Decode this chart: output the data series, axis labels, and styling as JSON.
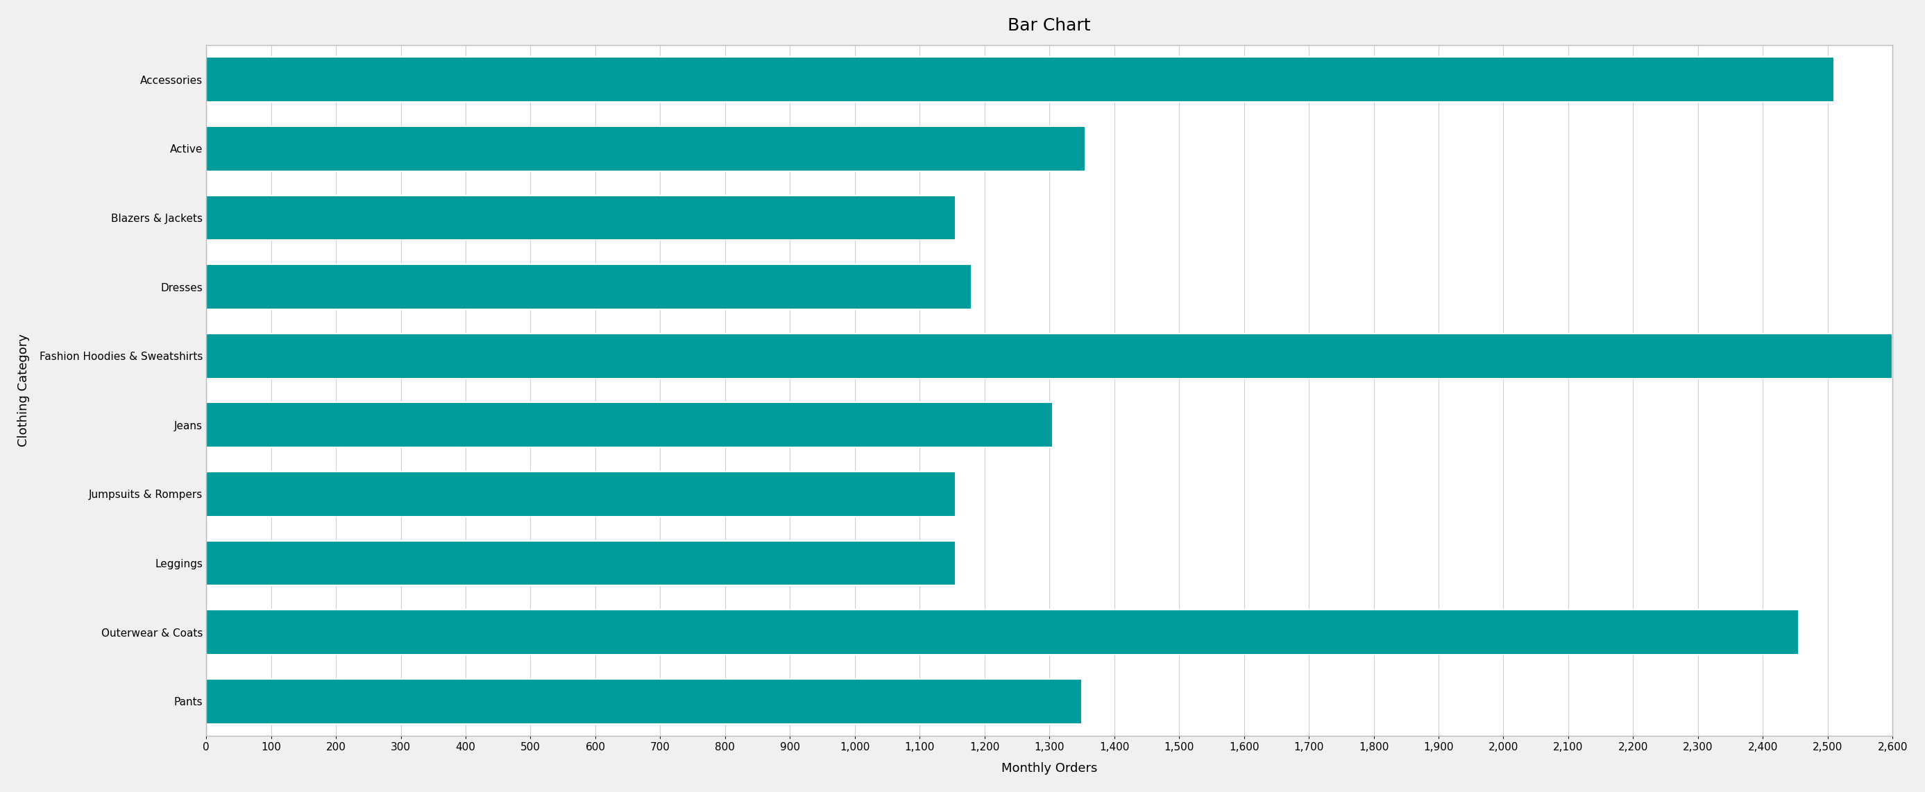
{
  "title": "Bar Chart",
  "xlabel": "Monthly Orders",
  "ylabel": "Clothing Category",
  "categories": [
    "Accessories",
    "Active",
    "Blazers & Jackets",
    "Dresses",
    "Fashion Hoodies & Sweatshirts",
    "Jeans",
    "Jumpsuits & Rompers",
    "Leggings",
    "Outerwear & Coats",
    "Pants"
  ],
  "values": [
    2510,
    1355,
    1155,
    1180,
    2600,
    1305,
    1155,
    1155,
    2455,
    1350
  ],
  "bar_color": "#009B9B",
  "background_color": "#f0f0f0",
  "plot_background_color": "#ffffff",
  "xlim": [
    0,
    2600
  ],
  "xtick_interval": 100,
  "title_fontsize": 18,
  "axis_label_fontsize": 13,
  "tick_fontsize": 11,
  "bar_height": 0.65,
  "grid_color": "#d0d0d0",
  "grid_linewidth": 0.8
}
